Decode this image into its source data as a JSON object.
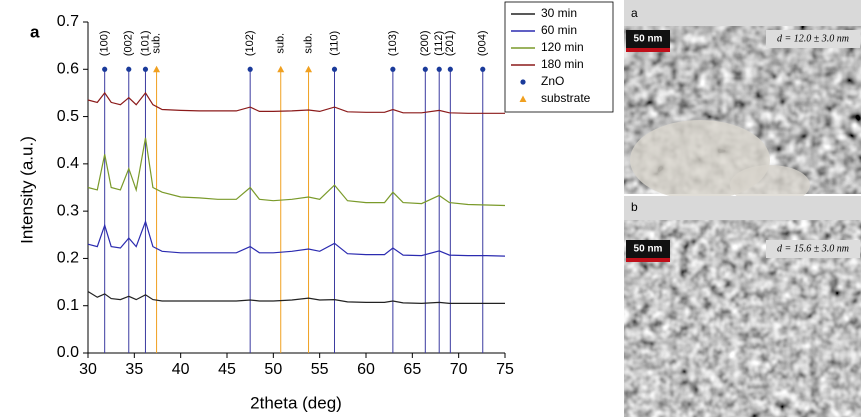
{
  "chart_data": {
    "type": "line",
    "panel": "a",
    "xlabel": "2theta (deg)",
    "ylabel": "Intensity (a.u.)",
    "xlim": [
      30,
      75
    ],
    "xticks": [
      30,
      35,
      40,
      45,
      50,
      55,
      60,
      65,
      70,
      75
    ],
    "ylim": [
      0,
      0.7
    ],
    "yticks": [
      {
        "value": 0,
        "label": "0.0"
      },
      0.1,
      0.2,
      0.3,
      0.4,
      0.5,
      0.6,
      0.7
    ],
    "x": [
      30,
      31,
      31.8,
      32.5,
      33.5,
      34.4,
      35.2,
      36.2,
      37,
      38,
      40,
      42,
      44,
      46,
      47.5,
      48.5,
      50,
      52,
      53.8,
      55,
      56.6,
      58,
      60,
      62,
      62.9,
      64,
      66,
      67.9,
      69,
      71,
      73,
      75
    ],
    "series": [
      {
        "name": "30 min",
        "color": "#222222",
        "values": [
          0.13,
          0.118,
          0.125,
          0.115,
          0.113,
          0.12,
          0.113,
          0.123,
          0.113,
          0.11,
          0.11,
          0.11,
          0.11,
          0.11,
          0.112,
          0.11,
          0.11,
          0.112,
          0.116,
          0.112,
          0.113,
          0.108,
          0.107,
          0.107,
          0.11,
          0.106,
          0.105,
          0.107,
          0.105,
          0.105,
          0.105,
          0.105
        ]
      },
      {
        "name": "60 min",
        "color": "#2b2bb0",
        "values": [
          0.23,
          0.225,
          0.27,
          0.225,
          0.222,
          0.243,
          0.225,
          0.278,
          0.225,
          0.215,
          0.212,
          0.212,
          0.212,
          0.212,
          0.225,
          0.212,
          0.212,
          0.215,
          0.22,
          0.215,
          0.232,
          0.21,
          0.208,
          0.208,
          0.222,
          0.207,
          0.206,
          0.216,
          0.207,
          0.206,
          0.206,
          0.205
        ]
      },
      {
        "name": "120 min",
        "color": "#7a9a2a",
        "values": [
          0.35,
          0.345,
          0.42,
          0.35,
          0.345,
          0.39,
          0.345,
          0.455,
          0.35,
          0.34,
          0.33,
          0.328,
          0.325,
          0.325,
          0.35,
          0.325,
          0.322,
          0.325,
          0.33,
          0.325,
          0.355,
          0.322,
          0.318,
          0.318,
          0.34,
          0.318,
          0.316,
          0.333,
          0.318,
          0.314,
          0.313,
          0.312
        ]
      },
      {
        "name": "180 min",
        "color": "#8b1a1a",
        "values": [
          0.535,
          0.53,
          0.55,
          0.53,
          0.525,
          0.54,
          0.525,
          0.55,
          0.525,
          0.515,
          0.513,
          0.512,
          0.512,
          0.512,
          0.52,
          0.511,
          0.511,
          0.512,
          0.514,
          0.511,
          0.52,
          0.51,
          0.509,
          0.509,
          0.515,
          0.508,
          0.508,
          0.513,
          0.508,
          0.507,
          0.507,
          0.507
        ]
      }
    ],
    "references": [
      {
        "name": "ZnO",
        "color": "#1a3a9a",
        "marker": "circle",
        "x": [
          31.8,
          34.4,
          36.2,
          47.5,
          56.6,
          62.9,
          66.4,
          67.9,
          69.1,
          72.6
        ],
        "values": [
          0.6,
          0.6,
          0.6,
          0.6,
          0.6,
          0.6,
          0.6,
          0.6,
          0.6,
          0.6
        ],
        "labels": [
          "(100)",
          "(002)",
          "(101)",
          "(102)",
          "(110)",
          "(103)",
          "(200)",
          "(112)",
          "(201)",
          "(004)"
        ]
      },
      {
        "name": "substrate",
        "color": "#f0a020",
        "marker": "triangle",
        "x": [
          37.4,
          50.8,
          53.8
        ],
        "values": [
          0.6,
          0.6,
          0.6
        ],
        "labels": [
          "sub.",
          "sub.",
          "sub."
        ]
      }
    ]
  },
  "images": [
    {
      "label": "a",
      "scale_bar": "50 nm",
      "size": "d = 12.0 ± 3.0 nm"
    },
    {
      "label": "b",
      "scale_bar": "50 nm",
      "size": "d = 15.6 ± 3.0 nm"
    }
  ]
}
